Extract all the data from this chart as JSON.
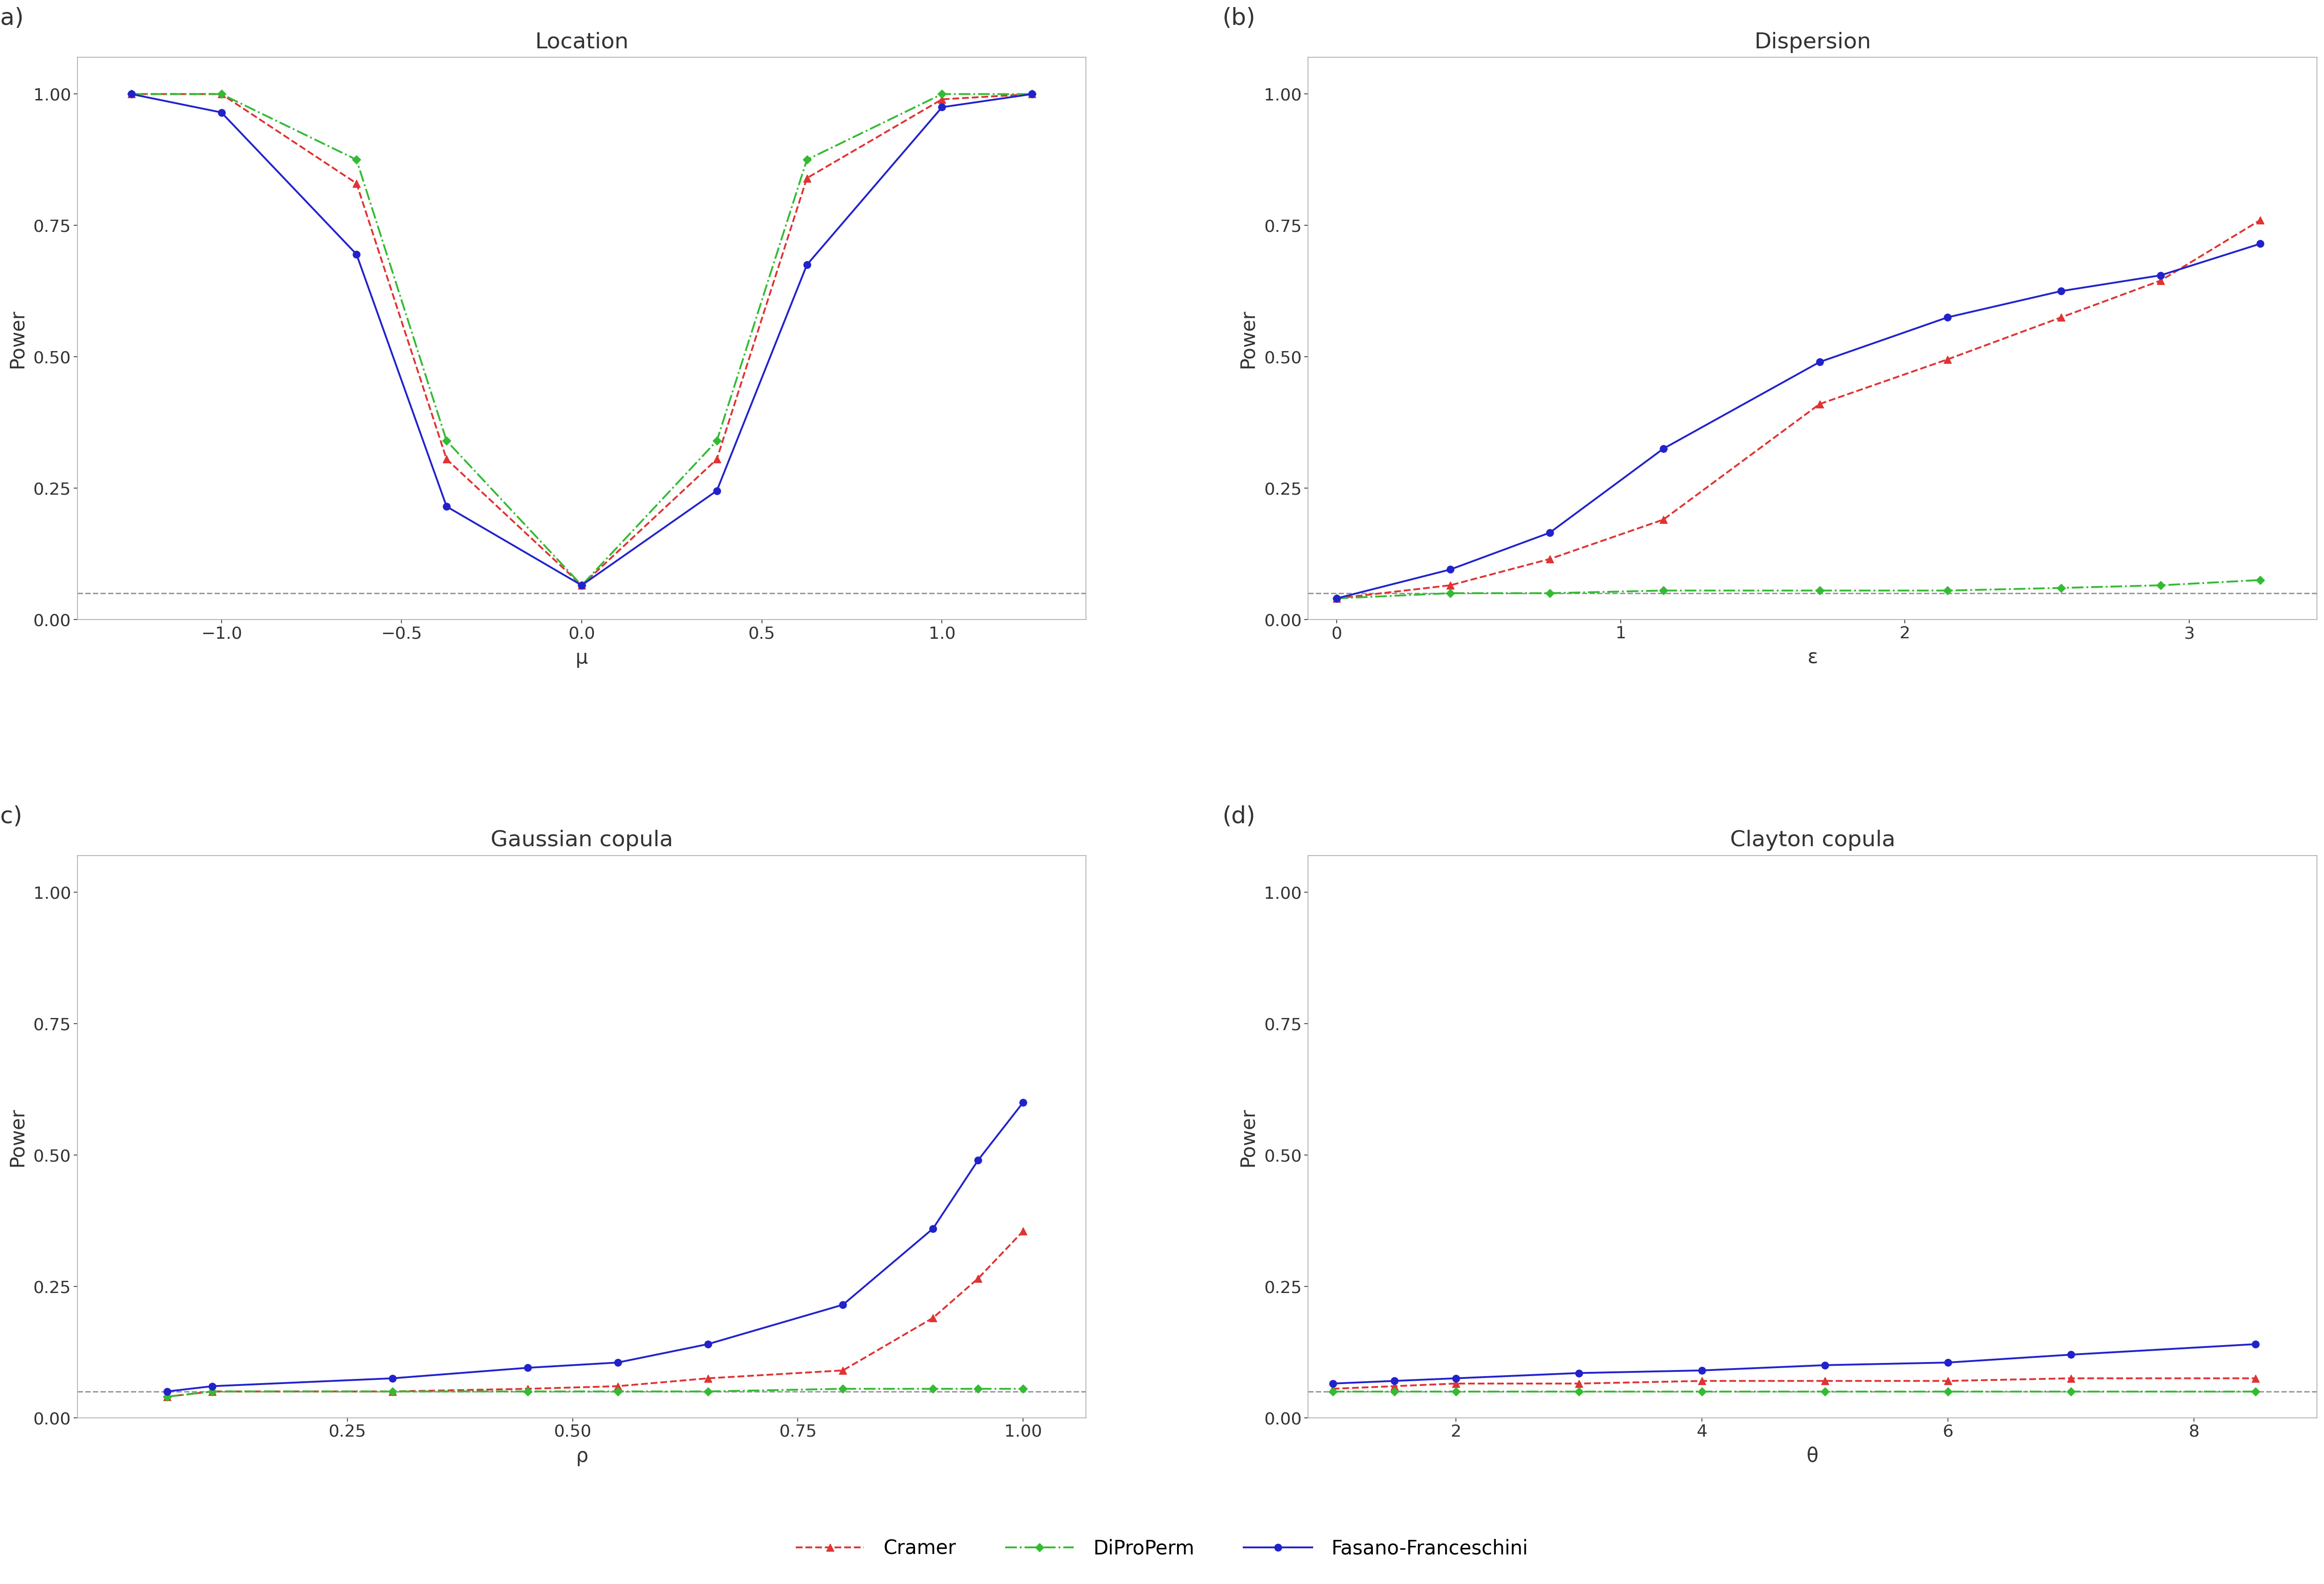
{
  "panel_a": {
    "title": "Location",
    "xlabel": "μ",
    "ylabel": "Power",
    "xlim": [
      -1.4,
      1.4
    ],
    "ylim": [
      0.0,
      1.07
    ],
    "yticks": [
      0.0,
      0.25,
      0.5,
      0.75,
      1.0
    ],
    "xticks": [
      -1.0,
      -0.5,
      0.0,
      0.5,
      1.0
    ],
    "hline": 0.05,
    "cramer_x": [
      -1.25,
      -1.0,
      -0.625,
      -0.375,
      0.0,
      0.375,
      0.625,
      1.0,
      1.25
    ],
    "cramer_y": [
      1.0,
      1.0,
      0.83,
      0.305,
      0.065,
      0.305,
      0.84,
      0.99,
      1.0
    ],
    "diproper_x": [
      -1.25,
      -1.0,
      -0.625,
      -0.375,
      0.0,
      0.375,
      0.625,
      1.0,
      1.25
    ],
    "diproper_y": [
      1.0,
      1.0,
      0.875,
      0.34,
      0.065,
      0.34,
      0.875,
      1.0,
      1.0
    ],
    "fasano_x": [
      -1.25,
      -1.0,
      -0.625,
      -0.375,
      0.0,
      0.375,
      0.625,
      1.0,
      1.25
    ],
    "fasano_y": [
      1.0,
      0.965,
      0.695,
      0.215,
      0.065,
      0.245,
      0.675,
      0.975,
      1.0
    ]
  },
  "panel_b": {
    "title": "Dispersion",
    "xlabel": "ε",
    "ylabel": "Power",
    "xlim": [
      -0.1,
      3.45
    ],
    "ylim": [
      0.0,
      1.07
    ],
    "yticks": [
      0.0,
      0.25,
      0.5,
      0.75,
      1.0
    ],
    "xticks": [
      0,
      1,
      2,
      3
    ],
    "hline": 0.05,
    "cramer_x": [
      0.0,
      0.4,
      0.75,
      1.15,
      1.7,
      2.15,
      2.55,
      2.9,
      3.25
    ],
    "cramer_y": [
      0.04,
      0.065,
      0.115,
      0.19,
      0.41,
      0.495,
      0.575,
      0.645,
      0.76
    ],
    "diproper_x": [
      0.0,
      0.4,
      0.75,
      1.15,
      1.7,
      2.15,
      2.55,
      2.9,
      3.25
    ],
    "diproper_y": [
      0.04,
      0.05,
      0.05,
      0.055,
      0.055,
      0.055,
      0.06,
      0.065,
      0.075
    ],
    "fasano_x": [
      0.0,
      0.4,
      0.75,
      1.15,
      1.7,
      2.15,
      2.55,
      2.9,
      3.25
    ],
    "fasano_y": [
      0.04,
      0.095,
      0.165,
      0.325,
      0.49,
      0.575,
      0.625,
      0.655,
      0.715
    ]
  },
  "panel_c": {
    "title": "Gaussian copula",
    "xlabel": "ρ",
    "ylabel": "Power",
    "xlim": [
      -0.05,
      1.07
    ],
    "ylim": [
      0.0,
      1.07
    ],
    "yticks": [
      0.0,
      0.25,
      0.5,
      0.75,
      1.0
    ],
    "xticks": [
      0.25,
      0.5,
      0.75,
      1.0
    ],
    "hline": 0.05,
    "cramer_x": [
      0.05,
      0.1,
      0.3,
      0.45,
      0.55,
      0.65,
      0.8,
      0.9,
      0.95,
      1.0
    ],
    "cramer_y": [
      0.04,
      0.05,
      0.05,
      0.055,
      0.06,
      0.075,
      0.09,
      0.19,
      0.265,
      0.355
    ],
    "diproper_x": [
      0.05,
      0.1,
      0.3,
      0.45,
      0.55,
      0.65,
      0.8,
      0.9,
      0.95,
      1.0
    ],
    "diproper_y": [
      0.04,
      0.05,
      0.05,
      0.05,
      0.05,
      0.05,
      0.055,
      0.055,
      0.055,
      0.055
    ],
    "fasano_x": [
      0.05,
      0.1,
      0.3,
      0.45,
      0.55,
      0.65,
      0.8,
      0.9,
      0.95,
      1.0
    ],
    "fasano_y": [
      0.05,
      0.06,
      0.075,
      0.095,
      0.105,
      0.14,
      0.215,
      0.36,
      0.49,
      0.6
    ]
  },
  "panel_d": {
    "title": "Clayton copula",
    "xlabel": "θ",
    "ylabel": "Power",
    "xlim": [
      0.8,
      9.0
    ],
    "ylim": [
      0.0,
      1.07
    ],
    "yticks": [
      0.0,
      0.25,
      0.5,
      0.75,
      1.0
    ],
    "xticks": [
      2,
      4,
      6,
      8
    ],
    "hline": 0.05,
    "cramer_x": [
      1.0,
      1.5,
      2.0,
      3.0,
      4.0,
      5.0,
      6.0,
      7.0,
      8.5
    ],
    "cramer_y": [
      0.055,
      0.06,
      0.065,
      0.065,
      0.07,
      0.07,
      0.07,
      0.075,
      0.075
    ],
    "diproper_x": [
      1.0,
      1.5,
      2.0,
      3.0,
      4.0,
      5.0,
      6.0,
      7.0,
      8.5
    ],
    "diproper_y": [
      0.05,
      0.05,
      0.05,
      0.05,
      0.05,
      0.05,
      0.05,
      0.05,
      0.05
    ],
    "fasano_x": [
      1.0,
      1.5,
      2.0,
      3.0,
      4.0,
      5.0,
      6.0,
      7.0,
      8.5
    ],
    "fasano_y": [
      0.065,
      0.07,
      0.075,
      0.085,
      0.09,
      0.1,
      0.105,
      0.12,
      0.14
    ]
  },
  "colors": {
    "cramer": "#E03333",
    "diproper": "#33BB33",
    "fasano": "#2222CC"
  },
  "lw": 2.8,
  "ms": 11,
  "hline_color": "#999999",
  "label_fontsize": 30,
  "title_fontsize": 34,
  "tick_fontsize": 26,
  "legend_fontsize": 30,
  "panel_label_fontsize": 36,
  "background_color": "#ffffff"
}
